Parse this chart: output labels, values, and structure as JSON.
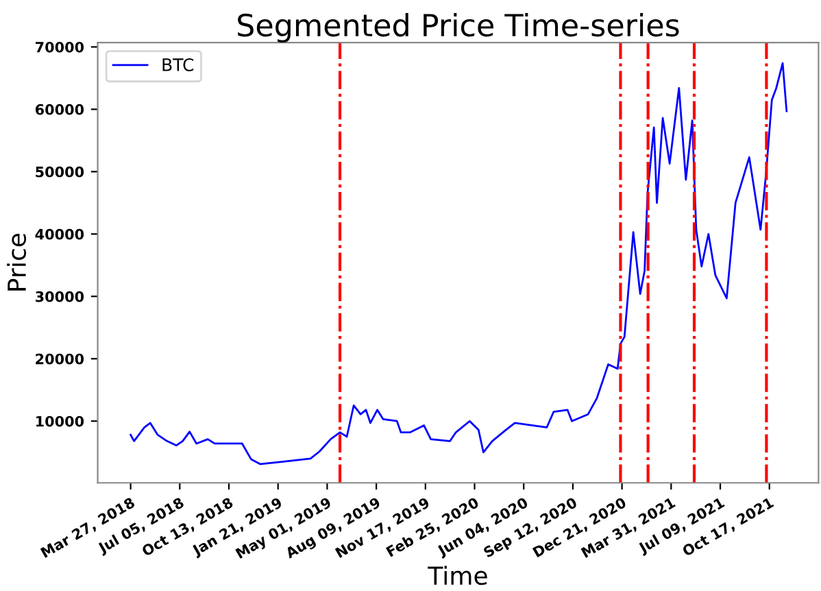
{
  "chart_data": {
    "type": "line",
    "title": "Segmented Price Time-series",
    "xlabel": "Time",
    "ylabel": "Price",
    "x": [
      "2018-03-27",
      "2018-04-03",
      "2018-04-24",
      "2018-05-06",
      "2018-05-21",
      "2018-06-09",
      "2018-06-28",
      "2018-07-11",
      "2018-07-25",
      "2018-08-08",
      "2018-08-31",
      "2018-09-14",
      "2018-11-09",
      "2018-11-27",
      "2018-12-16",
      "2019-01-31",
      "2019-03-28",
      "2019-04-15",
      "2019-05-08",
      "2019-05-27",
      "2019-06-10",
      "2019-06-24",
      "2019-07-08",
      "2019-07-19",
      "2019-07-28",
      "2019-08-11",
      "2019-08-23",
      "2019-09-20",
      "2019-09-28",
      "2019-10-17",
      "2019-11-14",
      "2019-11-28",
      "2020-01-06",
      "2020-01-18",
      "2020-02-15",
      "2020-03-04",
      "2020-03-14",
      "2020-04-01",
      "2020-04-29",
      "2020-05-17",
      "2020-07-21",
      "2020-08-04",
      "2020-09-01",
      "2020-09-10",
      "2020-10-13",
      "2020-10-31",
      "2020-11-23",
      "2020-12-12",
      "2020-12-18",
      "2020-12-26",
      "2021-01-13",
      "2021-01-27",
      "2021-02-05",
      "2021-02-11",
      "2021-02-24",
      "2021-03-02",
      "2021-03-14",
      "2021-03-28",
      "2021-04-16",
      "2021-04-30",
      "2021-05-13",
      "2021-05-21",
      "2021-06-01",
      "2021-06-15",
      "2021-06-29",
      "2021-07-22",
      "2021-08-09",
      "2021-09-06",
      "2021-09-29",
      "2021-10-10",
      "2021-10-22",
      "2021-10-31",
      "2021-11-13",
      "2021-11-21"
    ],
    "series": [
      {
        "name": "BTC",
        "color": "#0000ff",
        "line_style": "solid",
        "values": [
          7800,
          6800,
          9000,
          9700,
          7800,
          6800,
          6100,
          6800,
          8300,
          6400,
          7100,
          6400,
          6400,
          3900,
          3100,
          3500,
          4000,
          5100,
          7100,
          8200,
          7500,
          12500,
          11100,
          11800,
          9700,
          11800,
          10300,
          10000,
          8200,
          8200,
          9300,
          7100,
          6800,
          8200,
          10000,
          8600,
          5000,
          6800,
          8600,
          9700,
          9000,
          11500,
          11800,
          10000,
          11100,
          13700,
          19100,
          18400,
          22400,
          23500,
          40300,
          30400,
          34100,
          46500,
          57100,
          45000,
          58600,
          51300,
          63400,
          48700,
          58200,
          40700,
          34800,
          40000,
          33400,
          29700,
          45000,
          52300,
          40700,
          49500,
          61500,
          63400,
          67400,
          59700
        ]
      }
    ],
    "xlim": [
      "2018-01-19",
      "2022-01-25"
    ],
    "xticks": [
      {
        "value": "2018-03-27",
        "label": "Mar 27, 2018"
      },
      {
        "value": "2018-07-05",
        "label": "Jul 05, 2018"
      },
      {
        "value": "2018-10-13",
        "label": "Oct 13, 2018"
      },
      {
        "value": "2019-01-21",
        "label": "Jan 21, 2019"
      },
      {
        "value": "2019-05-01",
        "label": "May 01, 2019"
      },
      {
        "value": "2019-08-09",
        "label": "Aug 09, 2019"
      },
      {
        "value": "2019-11-17",
        "label": "Nov 17, 2019"
      },
      {
        "value": "2020-02-25",
        "label": "Feb 25, 2020"
      },
      {
        "value": "2020-06-04",
        "label": "Jun 04, 2020"
      },
      {
        "value": "2020-09-12",
        "label": "Sep 12, 2020"
      },
      {
        "value": "2020-12-21",
        "label": "Dec 21, 2020"
      },
      {
        "value": "2021-03-31",
        "label": "Mar 31, 2021"
      },
      {
        "value": "2021-07-09",
        "label": "Jul 09, 2021"
      },
      {
        "value": "2021-10-17",
        "label": "Oct 17, 2021"
      }
    ],
    "ylim": [
      100,
      70700
    ],
    "yticks": [
      10000,
      20000,
      30000,
      40000,
      50000,
      60000,
      70000
    ],
    "ref_lines": [
      {
        "axis": "x",
        "value": "2019-05-27",
        "color": "#ff0000",
        "line_style": "dashdot"
      },
      {
        "axis": "x",
        "value": "2020-12-18",
        "color": "#ff0000",
        "line_style": "dashdot"
      },
      {
        "axis": "x",
        "value": "2021-02-12",
        "color": "#ff0000",
        "line_style": "dashdot"
      },
      {
        "axis": "x",
        "value": "2021-05-17",
        "color": "#ff0000",
        "line_style": "dashdot"
      },
      {
        "axis": "x",
        "value": "2021-10-11",
        "color": "#ff0000",
        "line_style": "dashdot"
      }
    ],
    "grid": false,
    "legend": "top left",
    "marker": "none"
  }
}
